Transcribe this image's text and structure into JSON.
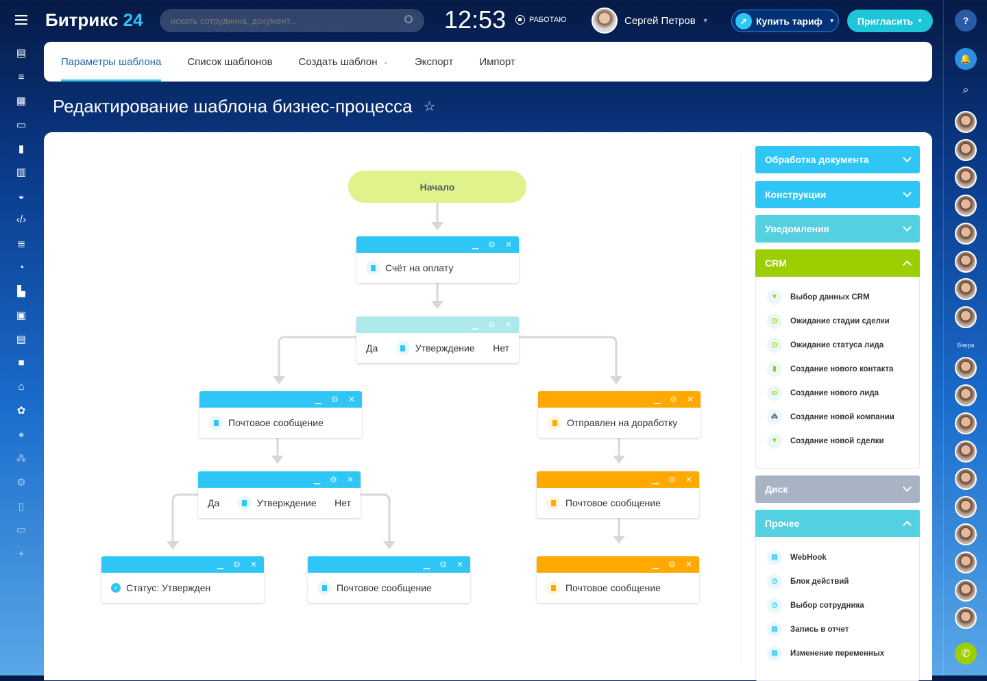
{
  "header": {
    "logo_main": "Битрикс",
    "logo_num": "24",
    "search_placeholder": "искать сотрудника, документ...",
    "clock": "12:53",
    "status": "РАБОТАЮ",
    "user": "Сергей Петров",
    "buy": "Купить тариф",
    "invite": "Пригласить",
    "help": "?"
  },
  "left_sidebar": [
    "menu",
    "feed",
    "tasks",
    "apps",
    "calendar",
    "reports",
    "knowledge",
    "bot",
    "dev",
    "sites",
    "crm",
    "company",
    "gallery",
    "documents",
    "video",
    "store",
    "process",
    "more",
    "network",
    "settings",
    "mobile",
    "devices",
    "add"
  ],
  "tabs": [
    {
      "label": "Параметры шаблона",
      "active": true
    },
    {
      "label": "Список шаблонов"
    },
    {
      "label": "Создать шаблон"
    },
    {
      "label": "Экспорт"
    },
    {
      "label": "Импорт"
    }
  ],
  "page_title": "Редактирование шаблона бизнес-процесса",
  "colors": {
    "accent": "#2fc6f6",
    "crm": "#9dcf00",
    "orange": "#ffa900",
    "start": "#dff28c",
    "disk": "#a8b4c4",
    "misc": "#55d0e0"
  },
  "flow": {
    "start": "Начало",
    "blocks": [
      {
        "label": "Счёт на оплату",
        "color": "blue"
      },
      {
        "yes": "Да",
        "label": "Утверждение",
        "no": "Нет",
        "color": "teal"
      },
      {
        "label": "Почтовое сообщение",
        "color": "blue"
      },
      {
        "label": "Отправлен на доработку",
        "color": "orange"
      },
      {
        "yes": "Да",
        "label": "Утверждение",
        "no": "Нет",
        "color": "blue"
      },
      {
        "label": "Почтовое сообщение",
        "color": "orange"
      },
      {
        "label": "Статус: Утвержден",
        "color": "blue"
      },
      {
        "label": "Почтовое сообщение",
        "color": "blue"
      },
      {
        "label": "Почтовое сообщение",
        "color": "orange"
      }
    ]
  },
  "panel": {
    "sections": [
      {
        "label": "Обработка документа"
      },
      {
        "label": "Конструкции"
      },
      {
        "label": "Уведомления"
      },
      {
        "label": "CRM",
        "expanded": true
      },
      {
        "label": "Диск"
      },
      {
        "label": "Прочее",
        "expanded": true
      }
    ],
    "crm_items": [
      "Выбор данных CRM",
      "Ожидание стадии сделки",
      "Ожидание статуса лида",
      "Создание нового контакта",
      "Создание нового лида",
      "Создание новой компании",
      "Создание новой сделки"
    ],
    "misc_items": [
      "WebHook",
      "Блок действий",
      "Выбор сотрудника",
      "Запись в отчет",
      "Изменение переменных"
    ]
  },
  "right_sidebar": {
    "yesterday": "Вчера"
  }
}
